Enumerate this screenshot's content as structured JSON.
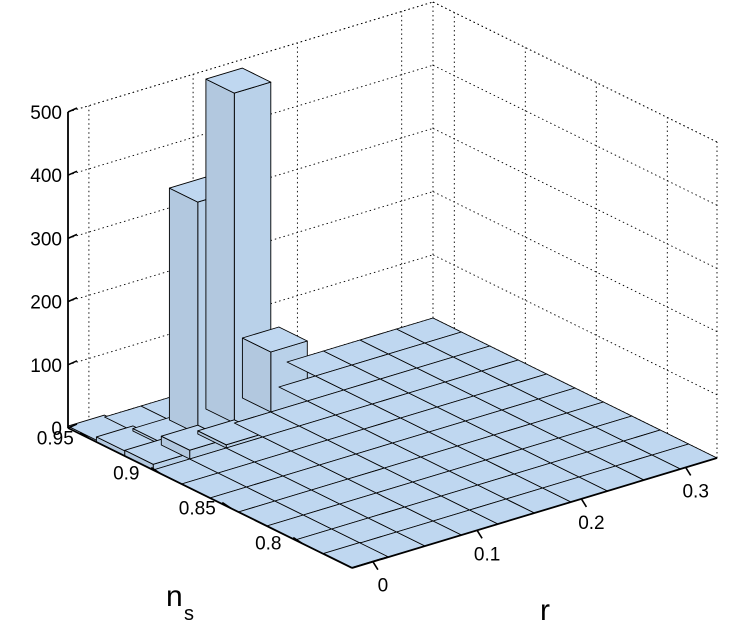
{
  "chart_data": {
    "type": "bar3d",
    "title": "",
    "xlabel": "r",
    "ylabel": "n",
    "ylabel_subscript": "s",
    "zlabel": "",
    "x_edges": [
      -0.02,
      0.015,
      0.05,
      0.085,
      0.12,
      0.155,
      0.19,
      0.225,
      0.26,
      0.295,
      0.33
    ],
    "y_edges": [
      0.765,
      0.785,
      0.805,
      0.825,
      0.845,
      0.865,
      0.885,
      0.905,
      0.925,
      0.945,
      0.965
    ],
    "zlim": [
      0,
      500
    ],
    "x_ticks": [
      0,
      0.1,
      0.2,
      0.3
    ],
    "x_tick_labels": [
      "0",
      "0.1",
      "0.2",
      "0.3"
    ],
    "y_ticks": [
      0.8,
      0.85,
      0.9,
      0.95
    ],
    "y_tick_labels": [
      "0.8",
      "0.85",
      "0.9",
      "0.95"
    ],
    "z_ticks": [
      0,
      100,
      200,
      300,
      400,
      500
    ],
    "z_tick_labels": [
      "0",
      "100",
      "200",
      "300",
      "400",
      "500"
    ],
    "grid": true,
    "bar_color": "#bfd7f0",
    "counts": [
      [
        1,
        0,
        0,
        0,
        0,
        0,
        0,
        0,
        0,
        0
      ],
      [
        0,
        0,
        0,
        0,
        0,
        0,
        0,
        0,
        0,
        0
      ],
      [
        0,
        0,
        0,
        0,
        0,
        0,
        0,
        0,
        0,
        0
      ],
      [
        0,
        0,
        0,
        0,
        0,
        0,
        0,
        0,
        0,
        0
      ],
      [
        0,
        0,
        0,
        0,
        0,
        0,
        0,
        0,
        0,
        0
      ],
      [
        0,
        0,
        0,
        0,
        0,
        0,
        0,
        0,
        0,
        0
      ],
      [
        0,
        0,
        0,
        0,
        0,
        0,
        0,
        0,
        0,
        0
      ],
      [
        9,
        14,
        5,
        0,
        0,
        0,
        0,
        0,
        0,
        0
      ],
      [
        8,
        4,
        367,
        522,
        95,
        0,
        0,
        0,
        0,
        0
      ],
      [
        3,
        0,
        0,
        0,
        0,
        0,
        0,
        0,
        0,
        0
      ]
    ]
  }
}
